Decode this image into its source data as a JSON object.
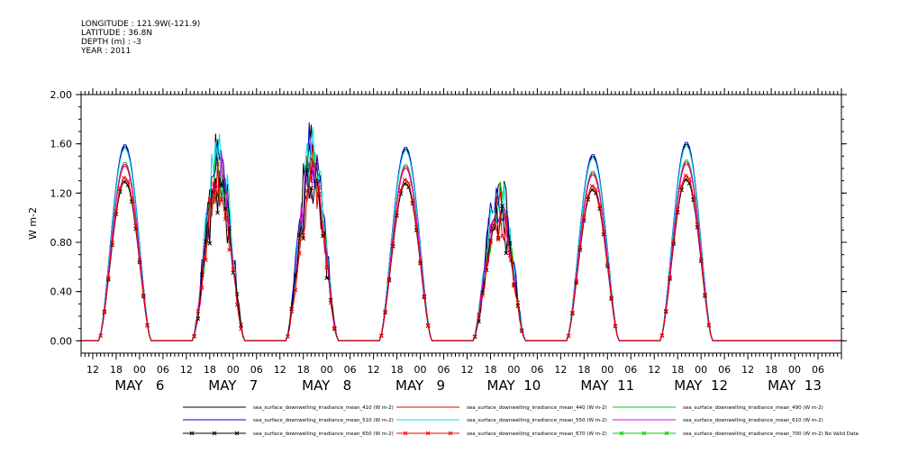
{
  "header": {
    "longitude": "LONGITUDE : 121.9W(-121.9)",
    "latitude": "LATITUDE : 36.8N",
    "depth": "DEPTH (m) : -3",
    "year": "YEAR : 2011"
  },
  "chart_data": {
    "type": "line",
    "title": "",
    "xlabel": "",
    "ylabel": "W m-2",
    "x_start": "2011-05-05T09:00",
    "x_end": "2011-05-13T12:00",
    "hour_ticks": [
      "12",
      "18",
      "00",
      "06",
      "12",
      "18",
      "00",
      "06",
      "12",
      "18",
      "00",
      "06",
      "12",
      "18",
      "00",
      "06",
      "12",
      "18",
      "00",
      "06",
      "12",
      "18",
      "00",
      "06",
      "12",
      "18",
      "00",
      "06",
      "12",
      "18",
      "00",
      "06"
    ],
    "date_labels": [
      "MAY   6",
      "MAY   7",
      "MAY   8",
      "MAY   9",
      "MAY  10",
      "MAY  11",
      "MAY  12",
      "MAY  13"
    ],
    "yticks": [
      "0.00",
      "0.40",
      "0.80",
      "1.20",
      "1.60",
      "2.00"
    ],
    "ylim": [
      -0.1,
      2.0
    ],
    "grid": false,
    "legend_position": "bottom",
    "day_peaks": [
      {
        "day": "MAY 6",
        "peak_410": 1.58,
        "noisy": false
      },
      {
        "day": "MAY 7",
        "peak_410": 1.6,
        "noisy": true
      },
      {
        "day": "MAY 8",
        "peak_410": 1.65,
        "noisy": true
      },
      {
        "day": "MAY 9",
        "peak_410": 1.56,
        "noisy": false
      },
      {
        "day": "MAY 10",
        "peak_410": 1.3,
        "noisy": true
      },
      {
        "day": "MAY 11",
        "peak_410": 1.5,
        "noisy": false
      },
      {
        "day": "MAY 12",
        "peak_410": 1.6,
        "noisy": false
      }
    ],
    "series": [
      {
        "name": "sea_surface_downwelling_irradiance_mean_410 (W m-2)",
        "color": "#000000",
        "marker": "none",
        "scale": 1.0
      },
      {
        "name": "sea_surface_downwelling_irradiance_mean_440 (W m-2)",
        "color": "#e00000",
        "marker": "none",
        "scale": 0.9
      },
      {
        "name": "sea_surface_downwelling_irradiance_mean_490 (W m-2)",
        "color": "#00cc00",
        "marker": "none",
        "scale": 0.92
      },
      {
        "name": "sea_surface_downwelling_irradiance_mean_510 (W m-2)",
        "color": "#0000cc",
        "marker": "none",
        "scale": 1.01
      },
      {
        "name": "sea_surface_downwelling_irradiance_mean_550 (W m-2)",
        "color": "#00dddd",
        "marker": "none",
        "scale": 0.99
      },
      {
        "name": "sea_surface_downwelling_irradiance_mean_610 (W m-2)",
        "color": "#dd00dd",
        "marker": "none",
        "scale": 0.91
      },
      {
        "name": "sea_surface_downwelling_irradiance_mean_650 (W m-2)",
        "color": "#000000",
        "marker": "x",
        "scale": 0.82
      },
      {
        "name": "sea_surface_downwelling_irradiance_mean_670 (W m-2)",
        "color": "#ee0000",
        "marker": "x",
        "scale": 0.84
      },
      {
        "name": "sea_surface_downwelling_irradiance_mean_700 (W m-2) No Valid Data",
        "color": "#00cc00",
        "marker": "x",
        "scale": 0
      }
    ]
  }
}
